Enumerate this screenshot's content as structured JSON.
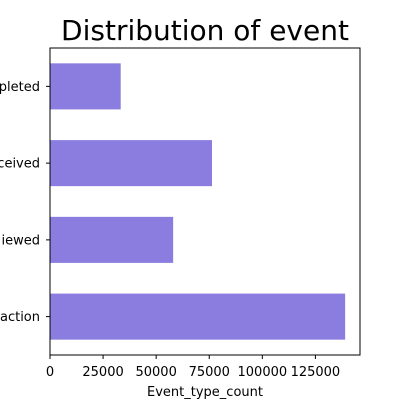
{
  "chart_data": {
    "type": "bar",
    "orientation": "horizontal",
    "title": "Distribution of event",
    "xlabel": "Event_type_count",
    "ylabel": "",
    "categories": [
      "transaction",
      "viewed",
      "received",
      "completed"
    ],
    "category_tick_labels": [
      "action",
      "iewed",
      "ceived",
      "pleted"
    ],
    "values": [
      139000,
      58000,
      76300,
      33300
    ],
    "xlim": [
      0,
      146000
    ],
    "xticks": [
      0,
      25000,
      50000,
      75000,
      100000,
      125000
    ],
    "xtick_labels": [
      "0",
      "25000",
      "50000",
      "75000",
      "100000",
      "125000"
    ],
    "grid": false,
    "legend": "none",
    "bar_color": "#8A7DDF"
  }
}
